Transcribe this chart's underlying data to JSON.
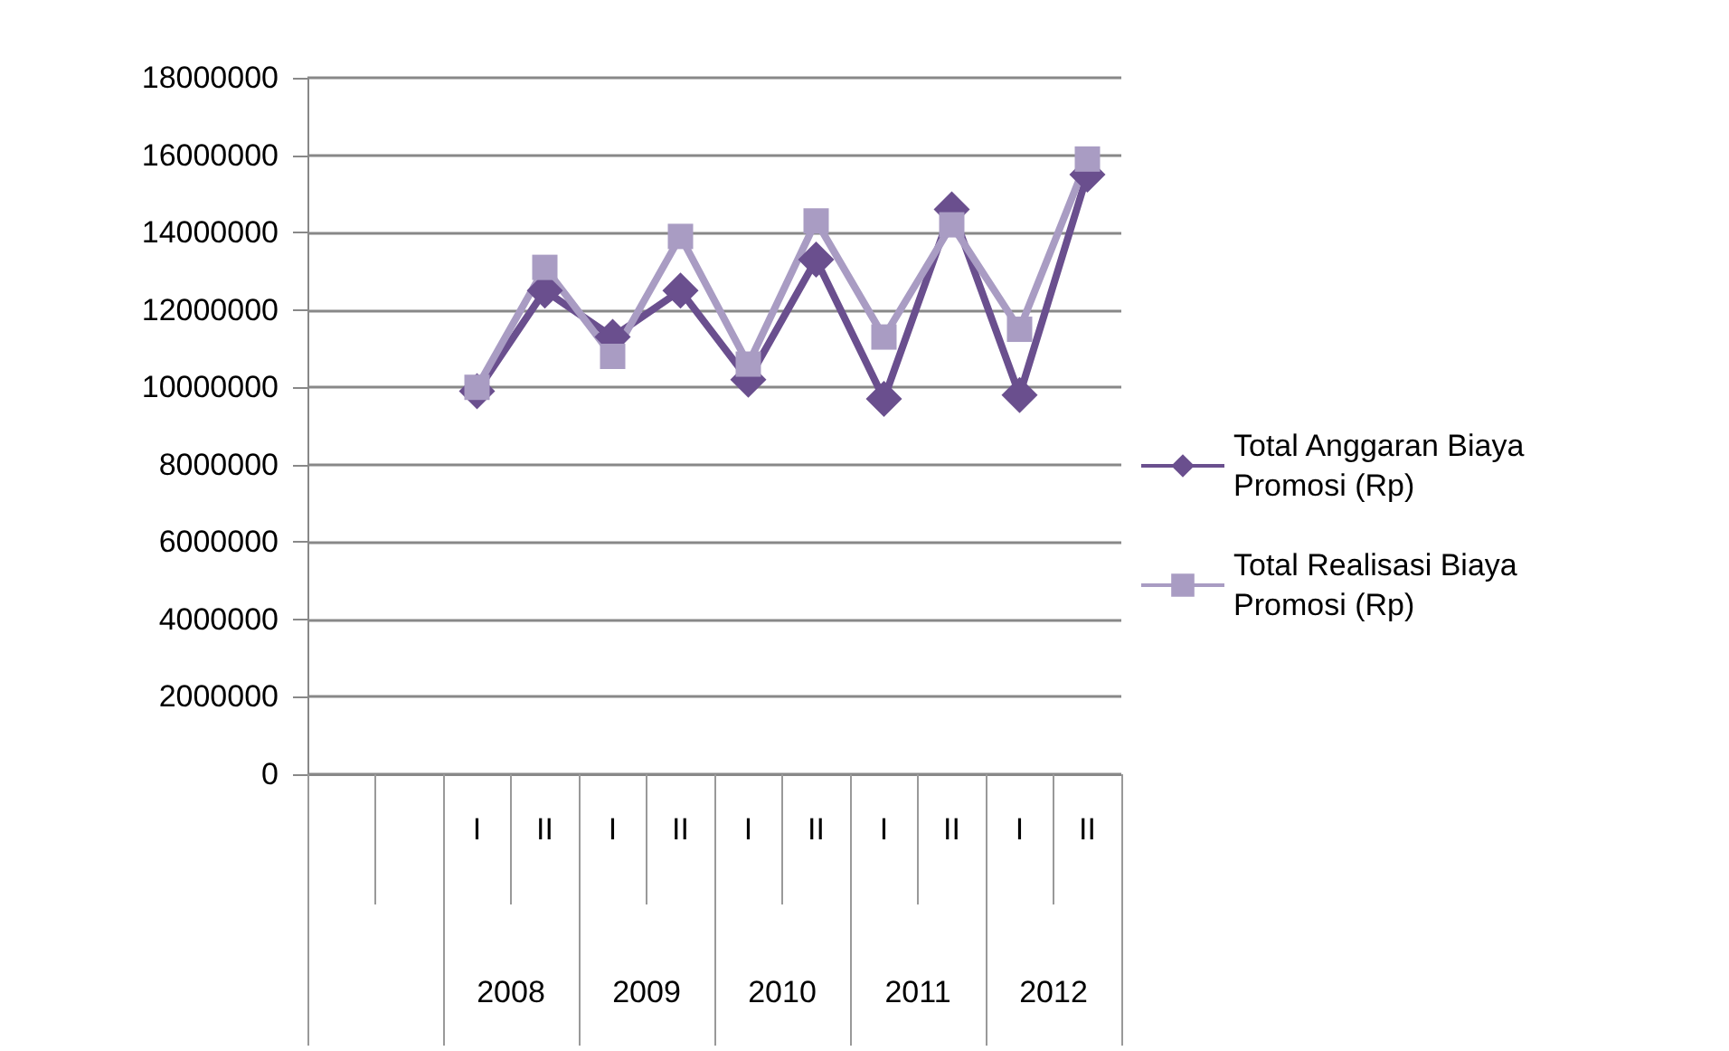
{
  "chart_data": {
    "type": "line",
    "categories": [
      null,
      null,
      "I",
      "II",
      "I",
      "II",
      "I",
      "II",
      "I",
      "II",
      "I",
      "II"
    ],
    "annotations": [
      "2008",
      "2009",
      "2010",
      "2011",
      "2012"
    ],
    "series": [
      {
        "name": "Total Anggaran Biaya Promosi (Rp)",
        "color": "#6a4f8e",
        "marker": "diamond",
        "values": [
          null,
          null,
          9900000,
          12500000,
          11300000,
          12500000,
          10200000,
          13300000,
          9700000,
          14600000,
          9800000,
          15500000
        ]
      },
      {
        "name": "Total Realisasi Biaya Promosi (Rp)",
        "color": "#a99cc3",
        "marker": "square",
        "values": [
          null,
          null,
          10000000,
          13100000,
          10800000,
          13900000,
          10600000,
          14300000,
          11300000,
          14200000,
          11500000,
          15900000
        ]
      }
    ],
    "ylim": [
      0,
      18000000
    ],
    "yticks": [
      0,
      2000000,
      4000000,
      6000000,
      8000000,
      10000000,
      12000000,
      14000000,
      16000000,
      18000000
    ],
    "grid": "y",
    "legend": "right"
  }
}
